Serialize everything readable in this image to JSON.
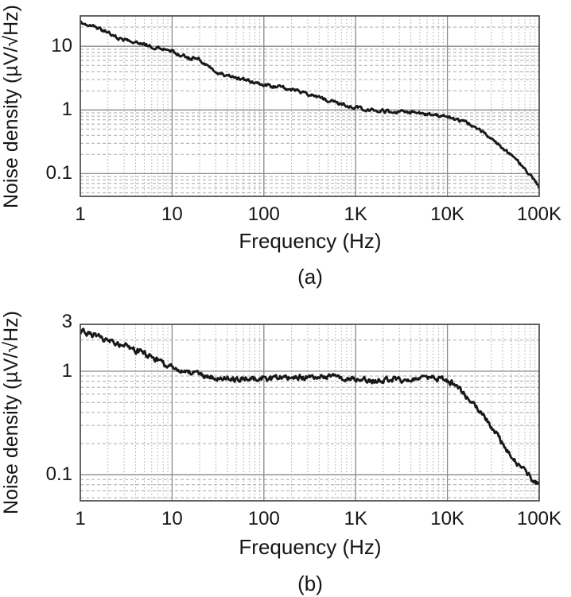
{
  "figure": {
    "background_color": "#ffffff",
    "text_color": "#161616",
    "grid_minor_color": "#a9a9a9",
    "grid_major_color": "#8a8a8a",
    "frame_color": "#3f3f3f"
  },
  "chart_data": [
    {
      "type": "line",
      "caption": "(a)",
      "xlabel": "Frequency (Hz)",
      "ylabel": "Noise density (µV/√Hz)",
      "x_scale": "log",
      "y_scale": "log",
      "grid": "log grid, dotted minors, solid decade majors",
      "legend": "none",
      "line_color": "#181818",
      "xlim": [
        1,
        100000
      ],
      "ylim": [
        0.044,
        30
      ],
      "x_tick_labels": [
        "1",
        "10",
        "100",
        "1K",
        "10K",
        "100K"
      ],
      "x_tick_values": [
        1,
        10,
        100,
        1000,
        10000,
        100000
      ],
      "y_tick_labels": [
        "10",
        "1",
        "0.1"
      ],
      "y_tick_values": [
        10,
        1,
        0.1
      ],
      "x": [
        1,
        1.4,
        2,
        2.8,
        4,
        5.5,
        7.5,
        10,
        13,
        16,
        19,
        24,
        30,
        45,
        65,
        100,
        150,
        220,
        330,
        500,
        700,
        1000,
        1500,
        2200,
        3300,
        5000,
        7000,
        10000,
        12000,
        15000,
        18000,
        22000,
        28000,
        35000,
        50000,
        70000,
        100000
      ],
      "values": [
        24,
        20.5,
        16.8,
        12.6,
        11.5,
        10.2,
        9.0,
        8.2,
        7.2,
        6.3,
        6.4,
        5.0,
        3.9,
        3.3,
        2.9,
        2.5,
        2.2,
        1.95,
        1.65,
        1.42,
        1.22,
        1.08,
        1.0,
        0.95,
        0.92,
        0.9,
        0.87,
        0.83,
        0.72,
        0.66,
        0.6,
        0.52,
        0.4,
        0.3,
        0.195,
        0.125,
        0.061
      ]
    },
    {
      "type": "line",
      "caption": "(b)",
      "xlabel": "Frequency (Hz)",
      "ylabel": "Noise density (µV/√Hz)",
      "x_scale": "log",
      "y_scale": "log",
      "grid": "log grid, dotted minors, solid decade majors",
      "legend": "none",
      "line_color": "#181818",
      "xlim": [
        1,
        100000
      ],
      "ylim": [
        0.056,
        2.84
      ],
      "x_tick_labels": [
        "1",
        "10",
        "100",
        "1K",
        "10K",
        "100K"
      ],
      "x_tick_values": [
        1,
        10,
        100,
        1000,
        10000,
        100000
      ],
      "y_tick_labels": [
        "3",
        "1",
        "0.1"
      ],
      "y_tick_values": [
        3,
        1,
        0.1
      ],
      "x": [
        1,
        1.3,
        1.8,
        2.5,
        3.5,
        5,
        7,
        10,
        14,
        20,
        30,
        50,
        80,
        130,
        200,
        350,
        600,
        1000,
        1800,
        3000,
        5000,
        8000,
        10000,
        12000,
        14000,
        17000,
        20000,
        27000,
        38000,
        55000,
        75000,
        100000
      ],
      "values": [
        2.4,
        2.25,
        2.0,
        1.8,
        1.6,
        1.45,
        1.3,
        1.1,
        1.0,
        0.93,
        0.87,
        0.85,
        0.86,
        0.84,
        0.86,
        0.85,
        0.86,
        0.84,
        0.86,
        0.85,
        0.86,
        0.85,
        0.83,
        0.76,
        0.66,
        0.55,
        0.47,
        0.34,
        0.22,
        0.14,
        0.1,
        0.082
      ]
    }
  ]
}
